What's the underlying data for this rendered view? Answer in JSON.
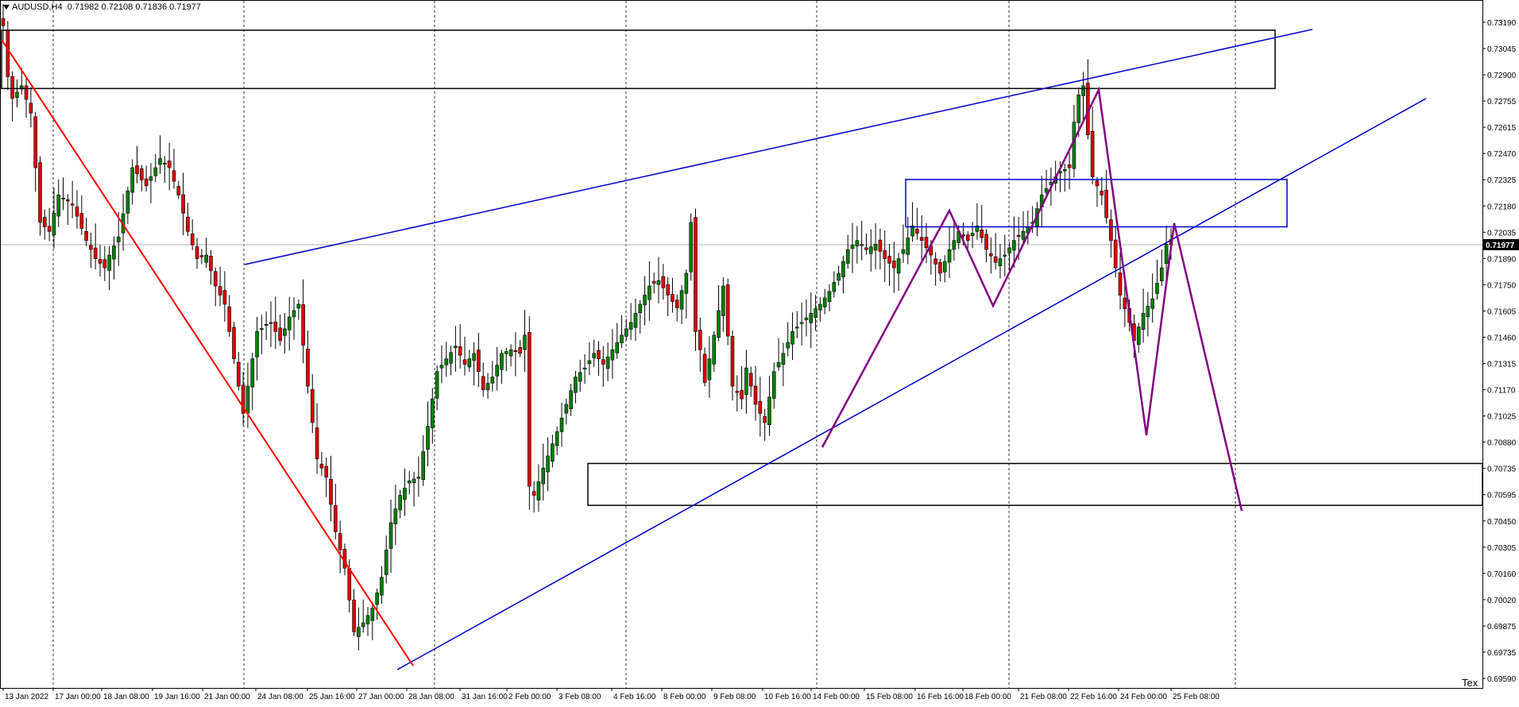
{
  "window": {
    "symbol_tf": "AUDUSD,H4",
    "ohlc": "0.71982 0.72108 0.71836 0.71977",
    "corner_label": "Tex"
  },
  "colors": {
    "bull": "#008000",
    "bear": "#e00000",
    "wick": "#000000",
    "grid": "#000000",
    "trend_blue": "#0000cc",
    "trend_red": "#ff0000",
    "pattern_purple": "#800080",
    "box_black": "#000000",
    "box_blue": "#0000cc",
    "bid_line": "#b0b0b0"
  },
  "chart_data": {
    "type": "candlestick",
    "symbol": "AUDUSD",
    "timeframe": "H4",
    "current_price": 0.71977,
    "ylim": [
      0.6959,
      0.7326
    ],
    "y_ticks": [
      "0.73190",
      "0.73045",
      "0.72900",
      "0.72755",
      "0.72615",
      "0.72470",
      "0.72325",
      "0.72180",
      "0.72035",
      "0.71890",
      "0.71750",
      "0.71605",
      "0.71460",
      "0.71315",
      "0.71170",
      "0.71025",
      "0.70880",
      "0.70735",
      "0.70595",
      "0.70450",
      "0.70305",
      "0.70160",
      "0.70020",
      "0.69875",
      "0.69735",
      "0.69590"
    ],
    "x_labels": [
      "13 Jan 2022",
      "17 Jan 00:00",
      "18 Jan 08:00",
      "19 Jan 16:00",
      "21 Jan 00:00",
      "24 Jan 08:00",
      "25 Jan 16:00",
      "27 Jan 00:00",
      "28 Jan 08:00",
      "31 Jan 16:00",
      "2 Feb 00:00",
      "3 Feb 08:00",
      "4 Feb 16:00",
      "8 Feb 00:00",
      "9 Feb 08:00",
      "10 Feb 16:00",
      "14 Feb 00:00",
      "15 Feb 08:00",
      "16 Feb 16:00",
      "18 Feb 00:00",
      "21 Feb 08:00",
      "22 Feb 16:00",
      "24 Feb 00:00",
      "25 Feb 08:00"
    ],
    "close_points": [
      [
        0,
        0.7318
      ],
      [
        1,
        0.729
      ],
      [
        2,
        0.7278
      ],
      [
        4,
        0.7285
      ],
      [
        6,
        0.727
      ],
      [
        8,
        0.721
      ],
      [
        10,
        0.7205
      ],
      [
        12,
        0.7225
      ],
      [
        15,
        0.722
      ],
      [
        18,
        0.72
      ],
      [
        20,
        0.719
      ],
      [
        22,
        0.7185
      ],
      [
        23,
        0.7192
      ],
      [
        25,
        0.7202
      ],
      [
        28,
        0.724
      ],
      [
        31,
        0.723
      ],
      [
        34,
        0.7245
      ],
      [
        36,
        0.724
      ],
      [
        38,
        0.7225
      ],
      [
        40,
        0.7205
      ],
      [
        42,
        0.719
      ],
      [
        44,
        0.7192
      ],
      [
        46,
        0.7175
      ],
      [
        48,
        0.7165
      ],
      [
        50,
        0.7135
      ],
      [
        52,
        0.7105
      ],
      [
        53,
        0.712
      ],
      [
        55,
        0.715
      ],
      [
        58,
        0.7155
      ],
      [
        60,
        0.7145
      ],
      [
        62,
        0.7158
      ],
      [
        64,
        0.7165
      ],
      [
        66,
        0.712
      ],
      [
        68,
        0.708
      ],
      [
        70,
        0.707
      ],
      [
        72,
        0.704
      ],
      [
        74,
        0.702
      ],
      [
        76,
        0.6985
      ],
      [
        78,
        0.699
      ],
      [
        80,
        0.6998
      ],
      [
        82,
        0.7015
      ],
      [
        84,
        0.7045
      ],
      [
        86,
        0.706
      ],
      [
        88,
        0.7068
      ],
      [
        90,
        0.707
      ],
      [
        92,
        0.7098
      ],
      [
        94,
        0.7128
      ],
      [
        96,
        0.7135
      ],
      [
        98,
        0.7142
      ],
      [
        100,
        0.7132
      ],
      [
        102,
        0.7138
      ],
      [
        104,
        0.7118
      ],
      [
        106,
        0.7125
      ],
      [
        108,
        0.7138
      ],
      [
        110,
        0.714
      ],
      [
        112,
        0.7138
      ],
      [
        113,
        0.7148
      ],
      [
        114,
        0.7065
      ],
      [
        115,
        0.706
      ],
      [
        117,
        0.7075
      ],
      [
        120,
        0.7095
      ],
      [
        122,
        0.711
      ],
      [
        124,
        0.7125
      ],
      [
        126,
        0.713
      ],
      [
        128,
        0.7138
      ],
      [
        130,
        0.7132
      ],
      [
        132,
        0.714
      ],
      [
        134,
        0.7148
      ],
      [
        136,
        0.7155
      ],
      [
        138,
        0.7165
      ],
      [
        140,
        0.7175
      ],
      [
        142,
        0.7178
      ],
      [
        144,
        0.717
      ],
      [
        146,
        0.7163
      ],
      [
        148,
        0.7182
      ],
      [
        149,
        0.721
      ],
      [
        150,
        0.715
      ],
      [
        151,
        0.714
      ],
      [
        152,
        0.7122
      ],
      [
        154,
        0.7148
      ],
      [
        156,
        0.7175
      ],
      [
        158,
        0.712
      ],
      [
        160,
        0.7113
      ],
      [
        161,
        0.713
      ],
      [
        163,
        0.711
      ],
      [
        165,
        0.71
      ],
      [
        167,
        0.7128
      ],
      [
        169,
        0.7138
      ],
      [
        171,
        0.715
      ],
      [
        173,
        0.7155
      ],
      [
        175,
        0.716
      ],
      [
        177,
        0.7165
      ],
      [
        179,
        0.7172
      ],
      [
        181,
        0.7182
      ],
      [
        183,
        0.7195
      ],
      [
        185,
        0.72
      ],
      [
        187,
        0.7195
      ],
      [
        189,
        0.7198
      ],
      [
        191,
        0.719
      ],
      [
        193,
        0.7185
      ],
      [
        195,
        0.7195
      ],
      [
        197,
        0.7208
      ],
      [
        199,
        0.72
      ],
      [
        201,
        0.7192
      ],
      [
        203,
        0.7182
      ],
      [
        205,
        0.7195
      ],
      [
        207,
        0.7205
      ],
      [
        209,
        0.72
      ],
      [
        211,
        0.7208
      ],
      [
        213,
        0.7195
      ],
      [
        215,
        0.7188
      ],
      [
        217,
        0.7192
      ],
      [
        219,
        0.72
      ],
      [
        221,
        0.7205
      ],
      [
        223,
        0.721
      ],
      [
        225,
        0.7225
      ],
      [
        227,
        0.7232
      ],
      [
        229,
        0.7238
      ],
      [
        231,
        0.724
      ],
      [
        232,
        0.7265
      ],
      [
        233,
        0.728
      ],
      [
        234,
        0.7285
      ],
      [
        235,
        0.7258
      ],
      [
        236,
        0.7235
      ],
      [
        238,
        0.7225
      ],
      [
        240,
        0.72
      ],
      [
        242,
        0.717
      ],
      [
        244,
        0.7155
      ],
      [
        245,
        0.7145
      ],
      [
        247,
        0.716
      ],
      [
        249,
        0.7168
      ],
      [
        251,
        0.7185
      ],
      [
        252,
        0.7198
      ],
      [
        253,
        0.71977
      ]
    ],
    "annotations": {
      "rectangles": [
        {
          "label": "supply-zone-top",
          "price_top": 0.73155,
          "price_bottom": 0.72835
        },
        {
          "label": "resistance-zone-mid",
          "price_top": 0.72335,
          "price_bottom": 0.72075
        },
        {
          "label": "demand-zone-bottom",
          "price_top": 0.70775,
          "price_bottom": 0.70545
        }
      ],
      "trendlines": [
        "upper-channel-line",
        "lower-channel-line",
        "down-trend-line"
      ],
      "projection": "purple-zigzag-projection"
    }
  }
}
